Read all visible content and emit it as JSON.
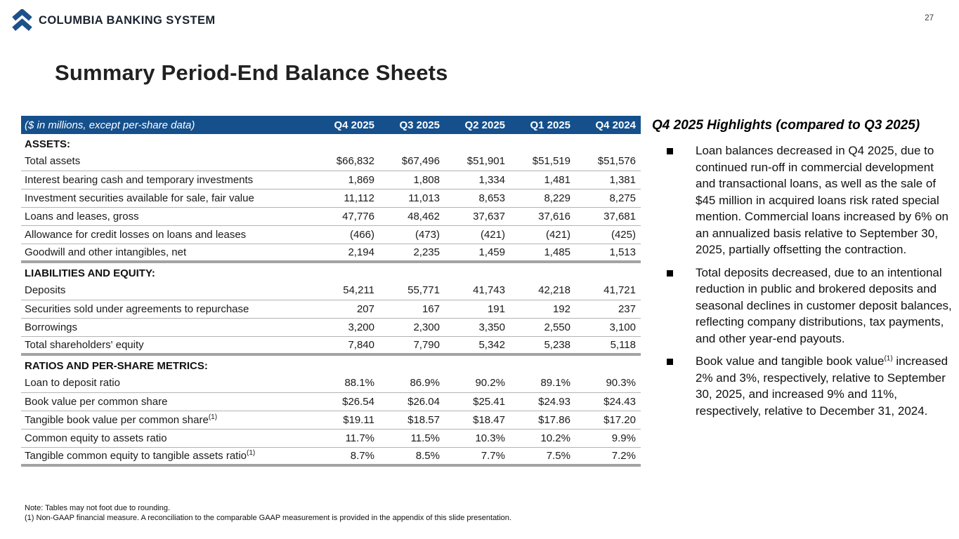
{
  "page": {
    "number": "27",
    "brand": "COLUMBIA BANKING SYSTEM",
    "title": "Summary Period-End Balance Sheets"
  },
  "colors": {
    "table_header_blue": "#15508c",
    "logo_blue": "#1d5189",
    "row_border_gray": "#b3b3b3",
    "section_border_gray": "#a3a3a3"
  },
  "table": {
    "header_label": "($ in millions, except per-share data)",
    "columns": [
      "Q4 2025",
      "Q3 2025",
      "Q2 2025",
      "Q1 2025",
      "Q4 2024"
    ],
    "sections": [
      {
        "title": "ASSETS:",
        "rows": [
          {
            "label": "Total assets",
            "values": [
              "$66,832",
              "$67,496",
              "$51,901",
              "$51,519",
              "$51,576"
            ]
          },
          {
            "label": "Interest bearing cash and temporary investments",
            "values": [
              "1,869",
              "1,808",
              "1,334",
              "1,481",
              "1,381"
            ]
          },
          {
            "label": "Investment securities available for sale, fair value",
            "values": [
              "11,112",
              "11,013",
              "8,653",
              "8,229",
              "8,275"
            ]
          },
          {
            "label": "Loans and leases, gross",
            "values": [
              "47,776",
              "48,462",
              "37,637",
              "37,616",
              "37,681"
            ]
          },
          {
            "label": "Allowance for credit losses on loans and leases",
            "values": [
              "(466)",
              "(473)",
              "(421)",
              "(421)",
              "(425)"
            ]
          },
          {
            "label": "Goodwill and other intangibles, net",
            "values": [
              "2,194",
              "2,235",
              "1,459",
              "1,485",
              "1,513"
            ]
          }
        ]
      },
      {
        "title": "LIABILITIES AND EQUITY:",
        "rows": [
          {
            "label": "Deposits",
            "values": [
              "54,211",
              "55,771",
              "41,743",
              "42,218",
              "41,721"
            ]
          },
          {
            "label": "Securities sold under agreements to repurchase",
            "values": [
              "207",
              "167",
              "191",
              "192",
              "237"
            ]
          },
          {
            "label": "Borrowings",
            "values": [
              "3,200",
              "2,300",
              "3,350",
              "2,550",
              "3,100"
            ]
          },
          {
            "label": "Total shareholders' equity",
            "values": [
              "7,840",
              "7,790",
              "5,342",
              "5,238",
              "5,118"
            ]
          }
        ]
      },
      {
        "title": "RATIOS AND PER-SHARE METRICS:",
        "rows": [
          {
            "label": "Loan to deposit ratio",
            "values": [
              "88.1%",
              "86.9%",
              "90.2%",
              "89.1%",
              "90.3%"
            ]
          },
          {
            "label": "Book value per common share",
            "values": [
              "$26.54",
              "$26.04",
              "$25.41",
              "$24.93",
              "$24.43"
            ]
          },
          {
            "label": "Tangible book value per common share",
            "label_sup": "(1)",
            "values": [
              "$19.11",
              "$18.57",
              "$18.47",
              "$17.86",
              "$17.20"
            ]
          },
          {
            "label": "Common equity to assets ratio",
            "values": [
              "11.7%",
              "11.5%",
              "10.3%",
              "10.2%",
              "9.9%"
            ]
          },
          {
            "label": "Tangible common equity to tangible assets ratio",
            "label_sup": "(1)",
            "values": [
              "8.7%",
              "8.5%",
              "7.7%",
              "7.5%",
              "7.2%"
            ]
          }
        ]
      }
    ]
  },
  "highlights": {
    "title": "Q4 2025 Highlights (compared to Q3 2025)",
    "bullets": [
      {
        "segments": [
          {
            "text": "Loan balances decreased in Q4 2025, due to continued run-off in commercial development and transactional loans, as well as the sale of $45 million in acquired loans risk rated special mention. Commercial loans increased by 6% on an annualized basis relative to September 30, 2025, partially offsetting the contraction."
          }
        ]
      },
      {
        "segments": [
          {
            "text": "Total deposits decreased, due to an intentional reduction in public and brokered deposits and seasonal declines in customer deposit balances, reflecting company distributions, tax payments, and other year-end payouts."
          }
        ]
      },
      {
        "segments": [
          {
            "text": "Book value and tangible book value"
          },
          {
            "text": "(1)",
            "sup": true
          },
          {
            "text": " increased 2% and 3%, respectively, relative to September 30, 2025, and increased 9% and 11%, respectively, relative to December 31, 2024."
          }
        ]
      }
    ]
  },
  "footnotes": [
    "Note: Tables may not foot due to rounding.",
    "(1)  Non-GAAP financial measure.  A reconciliation to the comparable GAAP measurement is provided in the appendix of this slide presentation."
  ]
}
